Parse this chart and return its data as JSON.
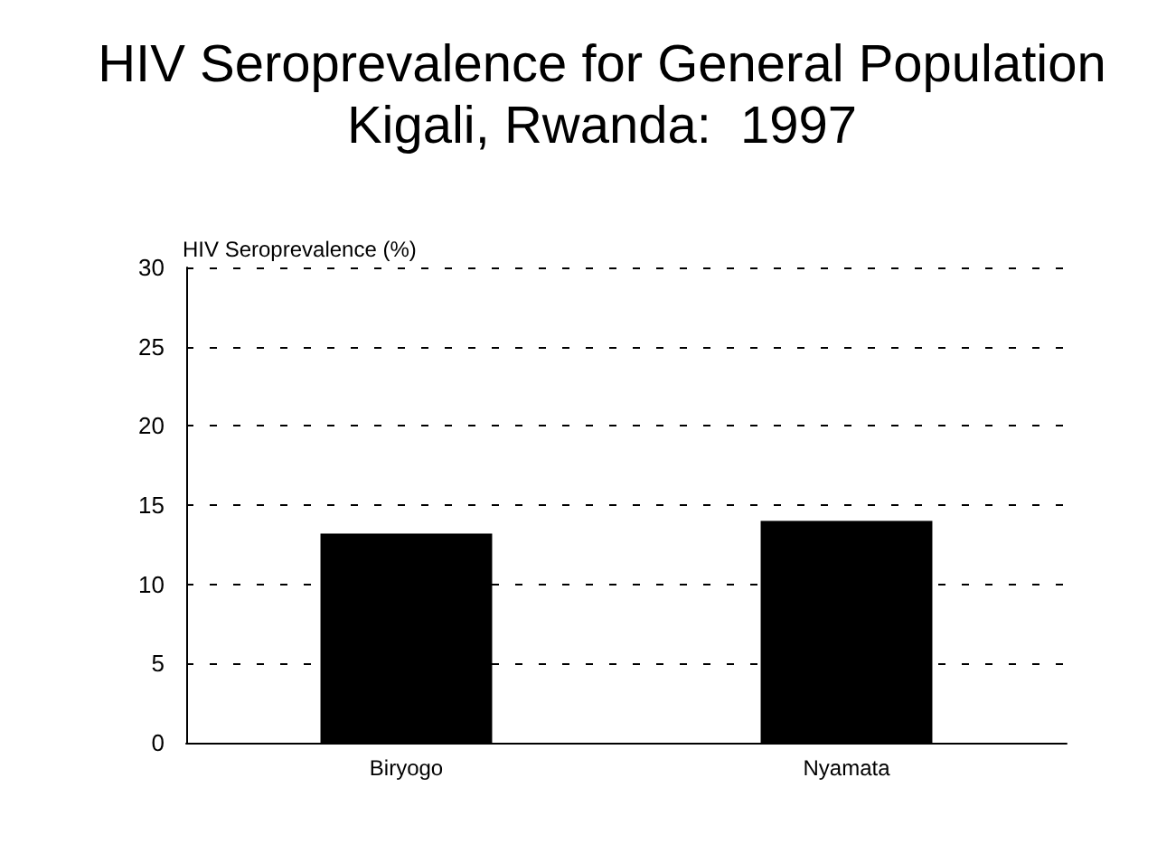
{
  "chart_data": {
    "type": "bar",
    "title": "HIV Seroprevalence for General Population\nKigali, Rwanda:  1997",
    "ylabel": "HIV Seroprevalence (%)",
    "categories": [
      "Biryogo",
      "Nyamata"
    ],
    "values": [
      13.2,
      14.0
    ],
    "color": "#000000",
    "ylim": [
      0,
      30
    ],
    "yticks": [
      0,
      5,
      10,
      15,
      20,
      25,
      30
    ],
    "grid": "y"
  }
}
